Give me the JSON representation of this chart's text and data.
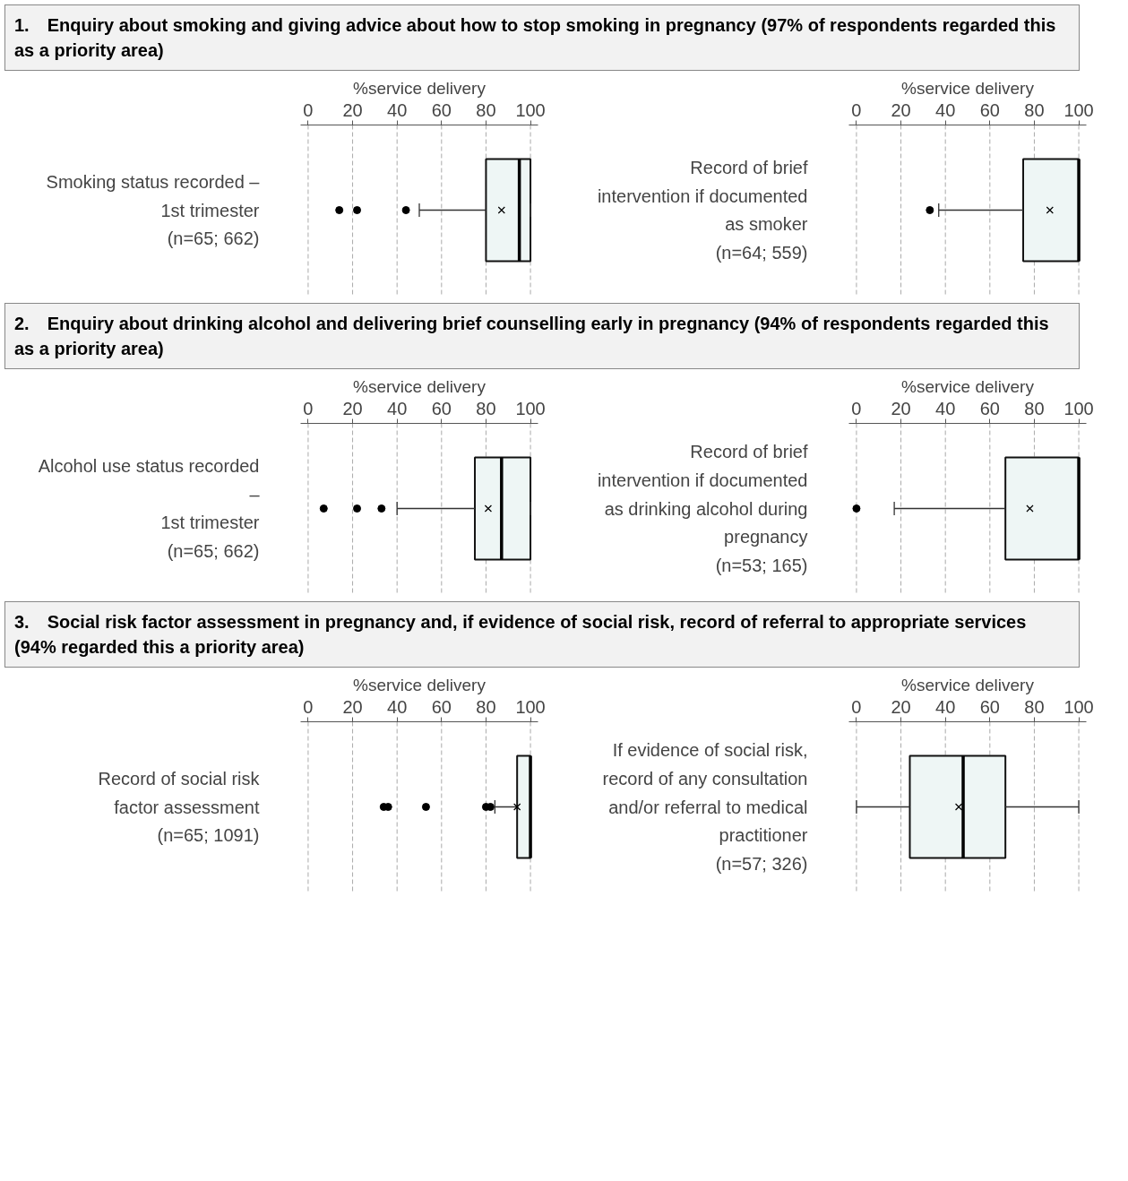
{
  "chart_data": [
    {
      "type": "box",
      "orientation": "horizontal",
      "title": "1. Enquiry about smoking and giving advice about how to stop smoking in pregnancy (97% of respondents regarded this as a priority area)",
      "xlabel": "%service delivery",
      "categories": [
        "Smoking status recorded –\n1st trimester\n(n=65; 662)"
      ],
      "xlim": [
        -3.4,
        103.4
      ],
      "xticks": [
        0,
        20,
        40,
        60,
        80,
        100
      ],
      "grid": "x",
      "series": [
        {
          "color": "#eef6f5",
          "boxes": [
            {
              "low": 50,
              "q1": 80,
              "median": 95,
              "q3": 100,
              "high": 100,
              "mean": 87,
              "outliers": [
                14,
                22,
                44
              ]
            }
          ]
        }
      ]
    },
    {
      "type": "box",
      "orientation": "horizontal",
      "xlabel": "%service delivery",
      "categories": [
        "Record of brief intervention if documented as smoker\n(n=64; 559)"
      ],
      "xlim": [
        -3.4,
        103.4
      ],
      "xticks": [
        0,
        20,
        40,
        60,
        80,
        100
      ],
      "grid": "x",
      "series": [
        {
          "color": "#eef6f5",
          "boxes": [
            {
              "low": 37,
              "q1": 75,
              "median": 100,
              "q3": 100,
              "high": 100,
              "mean": 87,
              "outliers": [
                33
              ]
            }
          ]
        }
      ]
    },
    {
      "type": "box",
      "orientation": "horizontal",
      "title": "2. Enquiry about drinking alcohol and delivering brief counselling early in pregnancy (94% of respondents regarded this as a priority area)",
      "xlabel": "%service delivery",
      "categories": [
        "Alcohol use status recorded –\n1st trimester\n(n=65; 662)"
      ],
      "xlim": [
        -3.4,
        103.4
      ],
      "xticks": [
        0,
        20,
        40,
        60,
        80,
        100
      ],
      "grid": "x",
      "series": [
        {
          "color": "#eef6f5",
          "boxes": [
            {
              "low": 40,
              "q1": 75,
              "median": 87,
              "q3": 100,
              "high": 100,
              "mean": 81,
              "outliers": [
                7,
                22,
                33
              ]
            }
          ]
        }
      ]
    },
    {
      "type": "box",
      "orientation": "horizontal",
      "xlabel": "%service delivery",
      "categories": [
        "Record of brief intervention if documented as drinking alcohol during pregnancy\n(n=53; 165)"
      ],
      "xlim": [
        -3.4,
        103.4
      ],
      "xticks": [
        0,
        20,
        40,
        60,
        80,
        100
      ],
      "grid": "x",
      "series": [
        {
          "color": "#eef6f5",
          "boxes": [
            {
              "low": 17,
              "q1": 67,
              "median": 100,
              "q3": 100,
              "high": 100,
              "mean": 78,
              "outliers": [
                0
              ]
            }
          ]
        }
      ]
    },
    {
      "type": "box",
      "orientation": "horizontal",
      "title": "3. Social risk factor assessment in pregnancy and, if evidence of social risk, record of referral to appropriate services (94% regarded this a priority area)",
      "xlabel": "%service delivery",
      "categories": [
        "Record of social risk factor assessment\n(n=65; 1091)"
      ],
      "xlim": [
        -3.4,
        103.4
      ],
      "xticks": [
        0,
        20,
        40,
        60,
        80,
        100
      ],
      "grid": "x",
      "series": [
        {
          "color": "#eef6f5",
          "boxes": [
            {
              "low": 84,
              "q1": 94,
              "median": 100,
              "q3": 100,
              "high": 100,
              "mean": 94,
              "outliers": [
                34,
                36,
                53,
                80,
                82
              ]
            }
          ]
        }
      ]
    },
    {
      "type": "box",
      "orientation": "horizontal",
      "xlabel": "%service delivery",
      "categories": [
        "If evidence of social risk, record of any consultation and/or referral to medical practitioner\n(n=57; 326)"
      ],
      "xlim": [
        -3.4,
        103.4
      ],
      "xticks": [
        0,
        20,
        40,
        60,
        80,
        100
      ],
      "grid": "x",
      "series": [
        {
          "color": "#eef6f5",
          "boxes": [
            {
              "low": 0,
              "q1": 24,
              "median": 48,
              "q3": 67,
              "high": 100,
              "mean": 46
            }
          ]
        }
      ]
    }
  ]
}
